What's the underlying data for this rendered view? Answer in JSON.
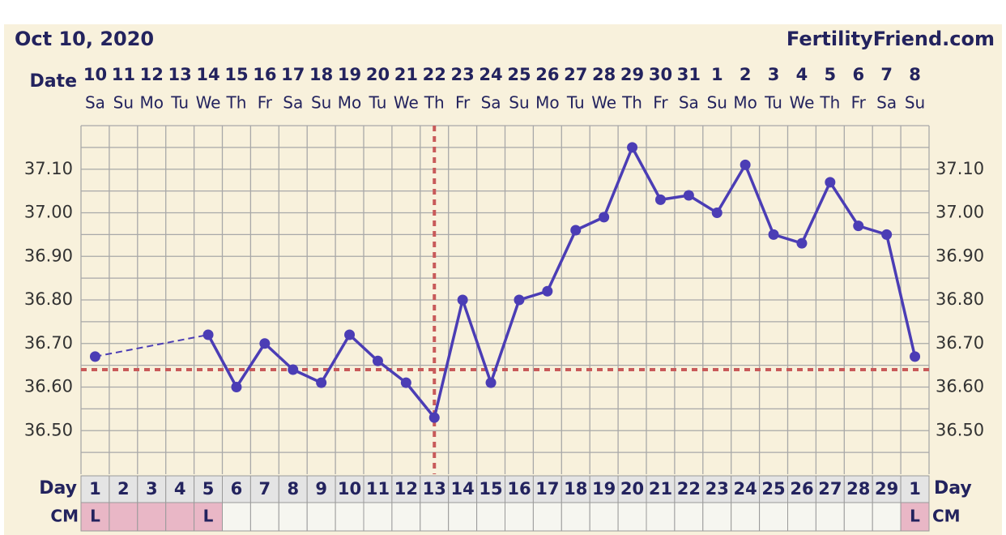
{
  "header": {
    "date": "Oct 10, 2020",
    "site": "FertilityFriend.com"
  },
  "chart_data": {
    "type": "line",
    "row_labels": {
      "date": "Date",
      "day": "Day",
      "cm": "CM"
    },
    "categories": [
      "10",
      "11",
      "12",
      "13",
      "14",
      "15",
      "16",
      "17",
      "18",
      "19",
      "20",
      "21",
      "22",
      "23",
      "24",
      "25",
      "26",
      "27",
      "28",
      "29",
      "30",
      "31",
      "1",
      "2",
      "3",
      "4",
      "5",
      "6",
      "7",
      "8"
    ],
    "weekdays": [
      "Sa",
      "Su",
      "Mo",
      "Tu",
      "We",
      "Th",
      "Fr",
      "Sa",
      "Su",
      "Mo",
      "Tu",
      "We",
      "Th",
      "Fr",
      "Sa",
      "Su",
      "Mo",
      "Tu",
      "We",
      "Th",
      "Fr",
      "Sa",
      "Su",
      "Mo",
      "Tu",
      "We",
      "Th",
      "Fr",
      "Sa",
      "Su"
    ],
    "days": [
      "1",
      "2",
      "3",
      "4",
      "5",
      "6",
      "7",
      "8",
      "9",
      "10",
      "11",
      "12",
      "13",
      "14",
      "15",
      "16",
      "17",
      "18",
      "19",
      "20",
      "21",
      "22",
      "23",
      "24",
      "25",
      "26",
      "27",
      "28",
      "29",
      "1"
    ],
    "cm": [
      "L",
      null,
      null,
      null,
      "L",
      null,
      null,
      null,
      null,
      null,
      null,
      null,
      null,
      null,
      null,
      null,
      null,
      null,
      null,
      null,
      null,
      null,
      null,
      null,
      null,
      null,
      null,
      null,
      null,
      "L"
    ],
    "period": [
      true,
      true,
      true,
      true,
      true,
      false,
      false,
      false,
      false,
      false,
      false,
      false,
      false,
      false,
      false,
      false,
      false,
      false,
      false,
      false,
      false,
      false,
      false,
      false,
      false,
      false,
      false,
      false,
      false,
      true
    ],
    "values": [
      36.67,
      null,
      null,
      null,
      36.72,
      36.6,
      36.7,
      36.64,
      36.61,
      36.72,
      36.66,
      36.61,
      36.53,
      36.8,
      36.61,
      36.8,
      36.82,
      36.96,
      36.99,
      37.15,
      37.03,
      37.04,
      37.0,
      37.11,
      36.95,
      36.93,
      37.07,
      36.97,
      36.95,
      36.67
    ],
    "color": "#4b3db5",
    "coverline": 36.64,
    "ovulation_index": 12,
    "ylim": [
      36.4,
      37.2
    ],
    "yticks": [
      {
        "value": 36.5,
        "label": "36.50"
      },
      {
        "value": 36.6,
        "label": "36.60"
      },
      {
        "value": 36.7,
        "label": "36.70"
      },
      {
        "value": 36.8,
        "label": "36.80"
      },
      {
        "value": 36.9,
        "label": "36.90"
      },
      {
        "value": 37.0,
        "label": "37.00"
      },
      {
        "value": 37.1,
        "label": "37.10"
      }
    ],
    "grid": true
  }
}
